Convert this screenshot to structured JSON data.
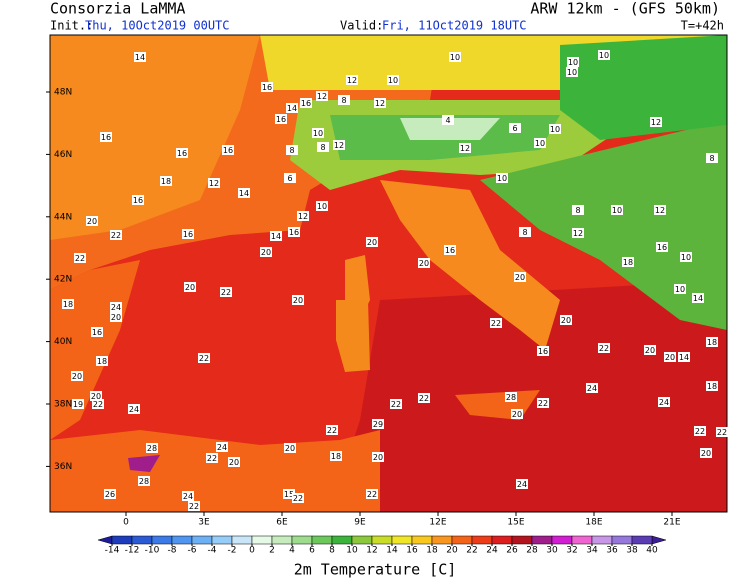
{
  "header": {
    "title": "Consorzia LaMMA",
    "model": "ARW 12km - (GFS 50km)",
    "init_label": "Init.:",
    "init": "Thu, 10Oct2019 00UTC",
    "valid_label": "Valid:",
    "valid": "Fri, 11Oct2019 18UTC",
    "lead": "T=+42h"
  },
  "map": {
    "xticks": [
      0,
      {
        "value": 3,
        "label": "3E"
      },
      {
        "value": 6,
        "label": "6E"
      },
      {
        "value": 9,
        "label": "9E"
      },
      {
        "value": 12,
        "label": "12E"
      },
      {
        "value": 15,
        "label": "15E"
      },
      {
        "value": 18,
        "label": "18E"
      },
      {
        "value": 21,
        "label": "21E"
      }
    ],
    "yticks": [
      {
        "value": 48,
        "label": "48N"
      },
      {
        "value": 46,
        "label": "46N"
      },
      {
        "value": 44,
        "label": "44N"
      },
      {
        "value": 42,
        "label": "42N"
      },
      {
        "value": 40,
        "label": "40N"
      },
      {
        "value": 38,
        "label": "38N"
      },
      {
        "value": 36,
        "label": "36N"
      }
    ],
    "temperatures": [
      14,
      10,
      10,
      10,
      10,
      12,
      10,
      16,
      14,
      16,
      12,
      8,
      12,
      16,
      10,
      8,
      12,
      4,
      6,
      10,
      12,
      16,
      12,
      10,
      16,
      16,
      8,
      8,
      18,
      12,
      14,
      16,
      6,
      10,
      20,
      10,
      12,
      8,
      10,
      12,
      16,
      14,
      16,
      20,
      12,
      20,
      22,
      22,
      8,
      16,
      20,
      18,
      16,
      10,
      20,
      22,
      20,
      20,
      10,
      14,
      18,
      24,
      20,
      16,
      22,
      20,
      16,
      22,
      20,
      20,
      14,
      18,
      22,
      18,
      20,
      24,
      18,
      19,
      20,
      22,
      24,
      22,
      22,
      28,
      22,
      20,
      24,
      22,
      22,
      22,
      29,
      28,
      24,
      22,
      20,
      20,
      18,
      20,
      20,
      28,
      26,
      24,
      22,
      15,
      22,
      22,
      24
    ]
  },
  "colorbar": {
    "title": "2m Temperature [C]",
    "levels": [
      -14,
      -12,
      -10,
      -8,
      -6,
      -4,
      -2,
      0,
      2,
      4,
      6,
      8,
      10,
      12,
      14,
      16,
      18,
      20,
      22,
      24,
      26,
      28,
      30,
      32,
      34,
      36,
      38,
      40
    ],
    "colors": [
      "#1c1c9c",
      "#1e3cbe",
      "#2a5ad6",
      "#3c7ae8",
      "#5096f0",
      "#6eb0f4",
      "#96ccf8",
      "#c8e6f8",
      "#e6f8e6",
      "#c6ecbe",
      "#9cdc8c",
      "#6cc85a",
      "#3cb43c",
      "#8cc83c",
      "#c8dc28",
      "#f0e628",
      "#f8c81e",
      "#f8961e",
      "#f46418",
      "#ec3c18",
      "#dc1e1e",
      "#b4141e",
      "#a01e8c",
      "#d21ed2",
      "#f064d2",
      "#c896e6",
      "#9678dc",
      "#5a3cb4",
      "#3c1e96"
    ]
  }
}
